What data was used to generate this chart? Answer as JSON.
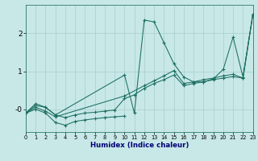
{
  "xlabel": "Humidex (Indice chaleur)",
  "bg_color": "#c8e8e8",
  "grid_color": "#a8cccc",
  "line_color": "#1a6e60",
  "xlim": [
    0,
    23
  ],
  "ylim": [
    -0.6,
    2.75
  ],
  "xticks": [
    0,
    1,
    2,
    3,
    4,
    5,
    6,
    7,
    8,
    9,
    10,
    11,
    12,
    13,
    14,
    15,
    16,
    17,
    18,
    19,
    20,
    21,
    22,
    23
  ],
  "yticks": [
    0,
    1,
    2
  ],
  "ytick_labels": [
    "-0",
    "1",
    "2"
  ],
  "series": [
    {
      "x": [
        0,
        1,
        2,
        3,
        10,
        11,
        12,
        13,
        14,
        15,
        16,
        17,
        18,
        19,
        20,
        21,
        22,
        23
      ],
      "y": [
        -0.1,
        0.15,
        0.05,
        -0.15,
        0.9,
        -0.1,
        2.35,
        2.3,
        1.75,
        1.2,
        0.85,
        0.72,
        0.72,
        0.8,
        1.05,
        1.9,
        0.85,
        2.5
      ]
    },
    {
      "x": [
        0,
        1,
        2,
        3,
        10,
        12,
        13,
        14,
        15,
        16,
        17,
        18,
        19,
        20,
        21,
        22,
        23
      ],
      "y": [
        -0.1,
        0.05,
        -0.05,
        -0.2,
        0.35,
        0.62,
        0.75,
        0.88,
        1.02,
        0.68,
        0.72,
        0.78,
        0.82,
        0.88,
        0.92,
        0.82,
        2.5
      ]
    },
    {
      "x": [
        0,
        1,
        2,
        3,
        4,
        5,
        6,
        7,
        8,
        9,
        10,
        11,
        12,
        13,
        14,
        15,
        16,
        17,
        18,
        19,
        20,
        21,
        22,
        23
      ],
      "y": [
        -0.1,
        0.1,
        0.05,
        -0.15,
        -0.22,
        -0.15,
        -0.1,
        -0.08,
        -0.05,
        -0.02,
        0.28,
        0.38,
        0.55,
        0.68,
        0.78,
        0.9,
        0.62,
        0.68,
        0.72,
        0.78,
        0.82,
        0.86,
        0.82,
        2.5
      ]
    },
    {
      "x": [
        0,
        1,
        2,
        3,
        4,
        5,
        6,
        7,
        8,
        9,
        10
      ],
      "y": [
        -0.1,
        0.0,
        -0.1,
        -0.35,
        -0.42,
        -0.32,
        -0.28,
        -0.25,
        -0.22,
        -0.2,
        -0.18
      ]
    }
  ]
}
